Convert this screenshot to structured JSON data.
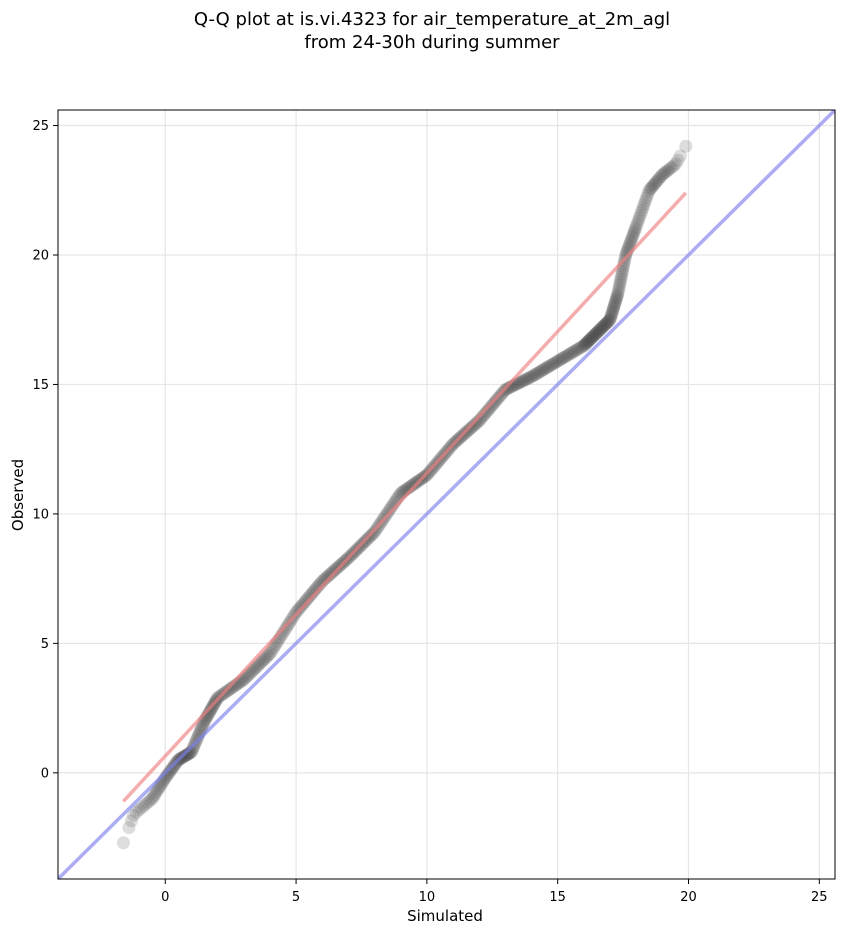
{
  "chart_data": {
    "type": "scatter",
    "title_line1": "Q-Q plot at is.vi.4323 for air_temperature_at_2m_agl",
    "title_line2": "from 24-30h during summer",
    "xlabel": "Simulated",
    "ylabel": "Observed",
    "xlim": [
      -4.1,
      25.6
    ],
    "ylim": [
      -4.1,
      25.6
    ],
    "xticks": [
      0,
      5,
      10,
      15,
      20,
      25
    ],
    "yticks": [
      0,
      5,
      10,
      15,
      20,
      25
    ],
    "grid": true,
    "colors": {
      "points": "#404040",
      "fit_line": "#f08080",
      "identity_line": "#8080f0"
    },
    "identity_line": {
      "x": [
        -4.1,
        25.6
      ],
      "y": [
        -4.1,
        25.6
      ]
    },
    "fit_line": {
      "x": [
        -1.6,
        19.9
      ],
      "y": [
        -1.1,
        22.4
      ]
    },
    "quantile_knots": {
      "x": [
        -1.6,
        -1.2,
        -0.5,
        0,
        0.5,
        1.0,
        1.5,
        2.0,
        3.0,
        4.0,
        5.0,
        6.0,
        7.0,
        8.0,
        9.0,
        10.0,
        11.0,
        12.0,
        13.0,
        14.0,
        15.0,
        16.0,
        16.5,
        17.0,
        17.3,
        17.6,
        18.0,
        18.5,
        19.0,
        19.5,
        19.9
      ],
      "y": [
        -2.7,
        -1.6,
        -1.0,
        -0.2,
        0.5,
        0.8,
        2.0,
        2.9,
        3.6,
        4.6,
        6.2,
        7.4,
        8.3,
        9.3,
        10.8,
        11.5,
        12.7,
        13.6,
        14.8,
        15.3,
        15.9,
        16.5,
        17.0,
        17.5,
        18.5,
        20.0,
        21.1,
        22.5,
        23.1,
        23.5,
        24.2
      ]
    },
    "points": {
      "count": 440
    }
  }
}
